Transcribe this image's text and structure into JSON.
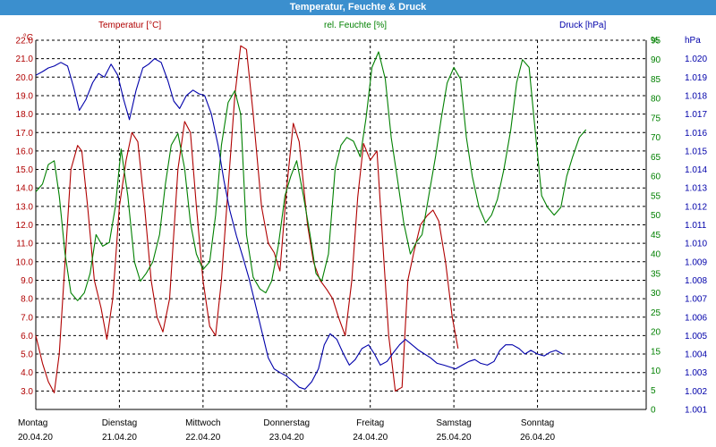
{
  "window": {
    "title": "Temperatur, Feuchte & Druck"
  },
  "legend": {
    "temperature": "Temperatur [°C]",
    "humidity": "rel. Feuchte [%]",
    "pressure": "Druck [hPa]"
  },
  "colors": {
    "temperature": "#b00000",
    "humidity": "#008000",
    "pressure": "#0000aa",
    "grid": "#000000"
  },
  "chart_data": {
    "type": "line",
    "xlim": [
      0,
      7.3
    ],
    "axes": {
      "temperature": {
        "unit_label": "°C",
        "range": [
          2.0,
          22.0
        ],
        "ticks": [
          "3.0",
          "4.0",
          "5.0",
          "6.0",
          "7.0",
          "8.0",
          "9.0",
          "10.0",
          "11.0",
          "12.0",
          "13.0",
          "14.0",
          "15.0",
          "16.0",
          "17.0",
          "18.0",
          "19.0",
          "20.0",
          "21.0",
          "22.0"
        ]
      },
      "humidity": {
        "unit_label": "%",
        "range": [
          0,
          95
        ],
        "ticks": [
          "0",
          "5",
          "10",
          "15",
          "20",
          "25",
          "30",
          "35",
          "40",
          "45",
          "50",
          "55",
          "60",
          "65",
          "70",
          "75",
          "80",
          "85",
          "90",
          "95"
        ]
      },
      "pressure": {
        "unit_label": "hPa",
        "range": [
          1.001,
          1.021
        ],
        "ticks": [
          "1.001",
          "1.002",
          "1.003",
          "1.004",
          "1.005",
          "1.006",
          "1.007",
          "1.008",
          "1.009",
          "1.010",
          "1.011",
          "1.012",
          "1.013",
          "1.014",
          "1.015",
          "1.016",
          "1.017",
          "1.018",
          "1.019",
          "1.020"
        ]
      }
    },
    "days": [
      {
        "day": "Montag",
        "date": "20.04.20"
      },
      {
        "day": "Dienstag",
        "date": "21.04.20"
      },
      {
        "day": "Mittwoch",
        "date": "22.04.20"
      },
      {
        "day": "Donnerstag",
        "date": "23.04.20"
      },
      {
        "day": "Freitag",
        "date": "24.04.20"
      },
      {
        "day": "Samstag",
        "date": "25.04.20"
      },
      {
        "day": "Sonntag",
        "date": "26.04.20"
      }
    ],
    "series": [
      {
        "key": "temperature",
        "name": "Temperatur [°C]",
        "axis": "temperature",
        "x": [
          0,
          0.08,
          0.15,
          0.22,
          0.28,
          0.35,
          0.42,
          0.5,
          0.55,
          0.62,
          0.7,
          0.78,
          0.85,
          0.92,
          1.0,
          1.08,
          1.15,
          1.22,
          1.3,
          1.38,
          1.45,
          1.52,
          1.6,
          1.7,
          1.78,
          1.85,
          1.92,
          2.0,
          2.08,
          2.15,
          2.22,
          2.3,
          2.38,
          2.45,
          2.52,
          2.6,
          2.7,
          2.78,
          2.85,
          2.92,
          3.0,
          3.08,
          3.15,
          3.25,
          3.32,
          3.4,
          3.48,
          3.55,
          3.62,
          3.7,
          3.78,
          3.85,
          3.92,
          4.0,
          4.08,
          4.15,
          4.22,
          4.3,
          4.38,
          4.45,
          4.52,
          4.6,
          4.68,
          4.75,
          4.82,
          4.9,
          4.98,
          5.05,
          5.12,
          5.2,
          5.28,
          5.35,
          5.42,
          5.5,
          5.58,
          5.62,
          5.68,
          5.75,
          5.8,
          5.88,
          5.95,
          6.02,
          6.1,
          6.18,
          6.25,
          6.3,
          6.38,
          6.45,
          6.52,
          6.6,
          6.7,
          6.78,
          6.86,
          6.95,
          7.02,
          7.05
        ],
        "values": [
          6.0,
          4.5,
          3.5,
          2.9,
          5.0,
          10.0,
          15.0,
          16.3,
          16.0,
          13.0,
          9.0,
          7.5,
          5.8,
          8.0,
          13.0,
          15.5,
          17.0,
          16.5,
          13.0,
          9.0,
          7.0,
          6.2,
          8.0,
          15.0,
          17.6,
          17.0,
          13.0,
          9.0,
          6.5,
          6.0,
          9.0,
          14.0,
          19.0,
          21.7,
          21.5,
          18.0,
          13.0,
          11.0,
          10.5,
          9.5,
          14.0,
          17.5,
          16.5,
          12.0,
          10.0,
          9.0,
          8.5,
          8.0,
          7.0,
          6.0,
          9.0,
          13.5,
          16.4,
          15.5,
          16.0,
          11.0,
          6.0,
          3.0,
          3.2,
          9.0,
          10.5,
          12.0,
          12.5,
          12.8,
          12.2,
          10.0,
          7.0,
          5.3,
          null,
          null,
          null,
          null,
          null,
          null,
          null,
          null,
          null,
          null,
          null,
          null,
          null,
          null,
          null,
          null,
          null,
          null,
          null,
          null,
          null,
          null,
          null,
          null,
          null,
          null,
          null,
          null
        ]
      },
      {
        "key": "humidity",
        "name": "rel. Feuchte [%]",
        "axis": "humidity",
        "x": [
          0,
          0.08,
          0.15,
          0.22,
          0.28,
          0.35,
          0.42,
          0.5,
          0.58,
          0.65,
          0.72,
          0.8,
          0.88,
          0.95,
          1.02,
          1.1,
          1.18,
          1.25,
          1.32,
          1.4,
          1.48,
          1.55,
          1.62,
          1.7,
          1.78,
          1.85,
          1.92,
          2.0,
          2.08,
          2.15,
          2.22,
          2.3,
          2.38,
          2.45,
          2.52,
          2.6,
          2.68,
          2.75,
          2.82,
          2.9,
          2.98,
          3.05,
          3.12,
          3.2,
          3.28,
          3.35,
          3.42,
          3.5,
          3.58,
          3.65,
          3.72,
          3.8,
          3.88,
          3.95,
          4.02,
          4.1,
          4.18,
          4.25,
          4.32,
          4.4,
          4.48,
          4.55,
          4.62,
          4.7,
          4.78,
          4.85,
          4.92,
          5.0,
          5.08,
          5.15,
          5.22,
          5.3,
          5.38,
          5.45,
          5.52,
          5.6,
          5.68,
          5.75,
          5.82,
          5.9,
          5.98,
          6.05,
          6.12,
          6.2,
          6.28,
          6.35,
          6.42,
          6.5,
          6.58,
          6.65,
          6.72,
          6.8,
          6.88,
          6.95,
          7.02
        ],
        "values": [
          56,
          58,
          63,
          64,
          55,
          40,
          30,
          28,
          30,
          35,
          45,
          42,
          43,
          52,
          67,
          55,
          38,
          33,
          35,
          38,
          45,
          58,
          68,
          71,
          62,
          48,
          40,
          36,
          38,
          50,
          68,
          79,
          82,
          76,
          45,
          34,
          31,
          30,
          33,
          42,
          55,
          60,
          64,
          55,
          45,
          35,
          33,
          40,
          62,
          68,
          70,
          69,
          65,
          75,
          88,
          92,
          85,
          70,
          60,
          48,
          40,
          43,
          45,
          55,
          65,
          75,
          84,
          88,
          85,
          70,
          60,
          52,
          48,
          50,
          54,
          62,
          72,
          84,
          90,
          88,
          70,
          55,
          52,
          50,
          52,
          60,
          65,
          70,
          72,
          null,
          null,
          null,
          null,
          null,
          null
        ]
      },
      {
        "key": "pressure",
        "name": "Druck [hPa]",
        "axis": "pressure",
        "x": [
          0,
          0.08,
          0.15,
          0.22,
          0.3,
          0.38,
          0.45,
          0.52,
          0.6,
          0.68,
          0.75,
          0.82,
          0.9,
          0.98,
          1.05,
          1.12,
          1.2,
          1.28,
          1.35,
          1.42,
          1.5,
          1.58,
          1.65,
          1.72,
          1.8,
          1.88,
          1.95,
          2.02,
          2.1,
          2.18,
          2.25,
          2.32,
          2.4,
          2.48,
          2.55,
          2.62,
          2.7,
          2.78,
          2.85,
          2.92,
          3.0,
          3.08,
          3.15,
          3.22,
          3.3,
          3.38,
          3.45,
          3.52,
          3.6,
          3.68,
          3.75,
          3.82,
          3.9,
          3.98,
          4.05,
          4.12,
          4.2,
          4.28,
          4.35,
          4.42,
          4.5,
          4.58,
          4.65,
          4.72,
          4.8,
          4.88,
          4.95,
          5.02,
          5.1,
          5.18,
          5.25,
          5.32,
          5.4,
          5.48,
          5.55,
          5.62,
          5.7,
          5.78,
          5.85,
          5.92,
          6.0,
          6.08,
          6.15,
          6.22,
          6.3,
          6.38,
          6.45,
          6.52,
          6.6,
          6.68,
          6.75,
          6.82,
          6.9,
          6.98,
          7.02
        ],
        "values": [
          1.0191,
          1.0193,
          1.0195,
          1.0196,
          1.0198,
          1.0196,
          1.0185,
          1.0172,
          1.0178,
          1.0187,
          1.0192,
          1.019,
          1.0197,
          1.0191,
          1.0178,
          1.0167,
          1.0183,
          1.0195,
          1.0197,
          1.02,
          1.0198,
          1.0188,
          1.0177,
          1.0173,
          1.018,
          1.0183,
          1.0181,
          1.018,
          1.017,
          1.0153,
          1.0134,
          1.0118,
          1.0104,
          1.0092,
          1.0081,
          1.0068,
          1.0053,
          1.0038,
          1.0032,
          1.003,
          1.0028,
          1.0025,
          1.0022,
          1.0021,
          1.0025,
          1.0032,
          1.0045,
          1.0051,
          1.0048,
          1.004,
          1.0034,
          1.0037,
          1.0043,
          1.0045,
          1.004,
          1.0034,
          1.0036,
          1.0041,
          1.0045,
          1.0048,
          1.0045,
          1.0042,
          1.004,
          1.0038,
          1.0035,
          1.0034,
          1.0033,
          1.0032,
          1.0034,
          1.0036,
          1.0037,
          1.0035,
          1.0034,
          1.0036,
          1.0042,
          1.0045,
          1.0045,
          1.0043,
          1.004,
          1.0042,
          1.004,
          1.0039,
          1.0041,
          1.0042,
          1.004,
          null,
          null,
          null,
          null,
          null,
          null,
          null,
          null,
          null,
          null
        ]
      }
    ]
  }
}
